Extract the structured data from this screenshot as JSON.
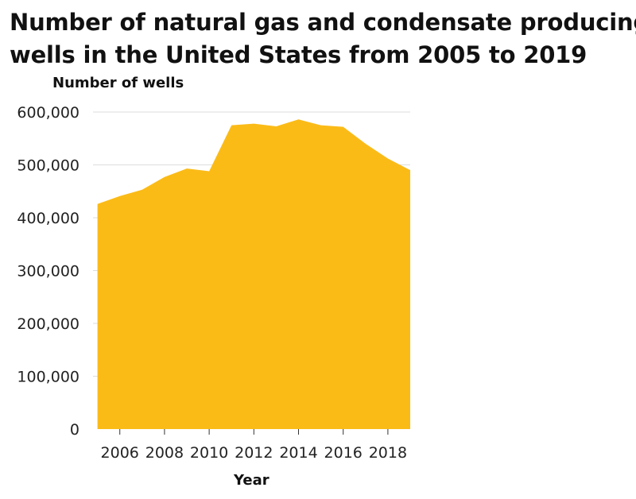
{
  "chart_data": {
    "type": "area",
    "title_lines": [
      "Number of natural gas and condensate producing",
      "wells in the United States from 2005 to 2019"
    ],
    "xlabel": "Year",
    "ylabel": "Number of wells",
    "x": [
      2005,
      2006,
      2007,
      2008,
      2009,
      2010,
      2011,
      2012,
      2013,
      2014,
      2015,
      2016,
      2017,
      2018,
      2019
    ],
    "values": [
      426000,
      441000,
      453000,
      477000,
      493000,
      488000,
      575000,
      578000,
      573000,
      586000,
      575000,
      572000,
      540000,
      512000,
      490000
    ],
    "xlim": [
      2004.8,
      2019
    ],
    "ylim": [
      0,
      600000
    ],
    "x_ticks": [
      2006,
      2008,
      2010,
      2012,
      2014,
      2016,
      2018
    ],
    "x_tick_labels": [
      "2006",
      "2008",
      "2010",
      "2012",
      "2014",
      "2016",
      "2018"
    ],
    "y_ticks": [
      0,
      100000,
      200000,
      300000,
      400000,
      500000,
      600000
    ],
    "y_tick_labels": [
      "0",
      "100,000",
      "200,000",
      "300,000",
      "400,000",
      "500,000",
      "600,000"
    ],
    "grid": "horizontal",
    "fill_color": "#FBBB17",
    "grid_color": "#dddddd"
  }
}
